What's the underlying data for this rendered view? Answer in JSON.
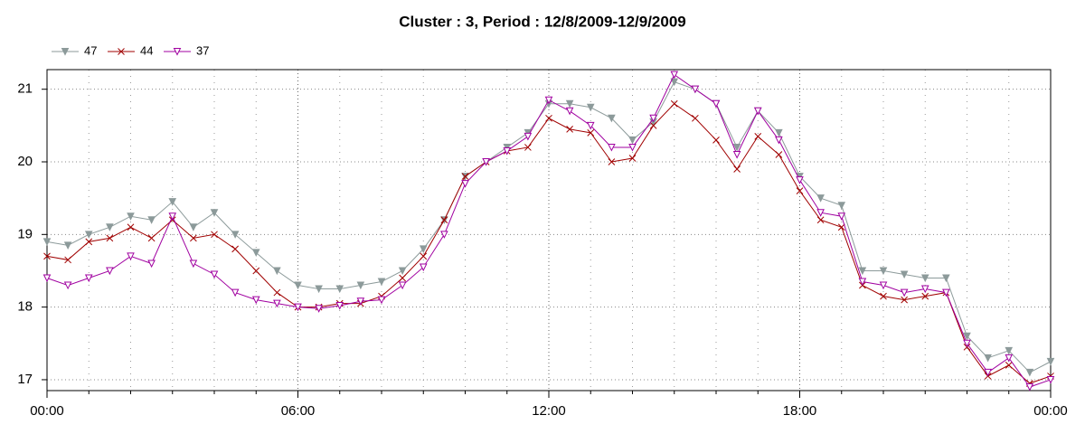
{
  "chart_data": {
    "type": "line",
    "title": "Cluster : 3, Period : 12/8/2009-12/9/2009",
    "x": [
      0,
      0.5,
      1,
      1.5,
      2,
      2.5,
      3,
      3.5,
      4,
      4.5,
      5,
      5.5,
      6,
      6.5,
      7,
      7.5,
      8,
      8.5,
      9,
      9.5,
      10,
      10.5,
      11,
      11.5,
      12,
      12.5,
      13,
      13.5,
      14,
      14.5,
      15,
      15.5,
      16,
      16.5,
      17,
      17.5,
      18,
      18.5,
      19,
      19.5,
      20,
      20.5,
      21,
      21.5,
      22,
      22.5,
      23,
      23.5,
      24
    ],
    "series": [
      {
        "name": "47",
        "color": "#8c9a9a",
        "marker": "triangle-down",
        "values": [
          18.9,
          18.85,
          19.0,
          19.1,
          19.25,
          19.2,
          19.45,
          19.1,
          19.3,
          19.0,
          18.75,
          18.5,
          18.3,
          18.25,
          18.25,
          18.3,
          18.35,
          18.5,
          18.8,
          19.2,
          19.8,
          20.0,
          20.2,
          20.4,
          20.8,
          20.8,
          20.75,
          20.6,
          20.3,
          20.55,
          21.1,
          21.0,
          20.8,
          20.2,
          20.7,
          20.4,
          19.8,
          19.5,
          19.4,
          18.5,
          18.5,
          18.45,
          18.4,
          18.4,
          17.6,
          17.3,
          17.4,
          17.1,
          17.25
        ]
      },
      {
        "name": "44",
        "color": "#a00000",
        "marker": "x",
        "values": [
          18.7,
          18.65,
          18.9,
          18.95,
          19.1,
          18.95,
          19.2,
          18.95,
          19.0,
          18.8,
          18.5,
          18.2,
          18.0,
          18.0,
          18.05,
          18.05,
          18.15,
          18.4,
          18.7,
          19.2,
          19.8,
          20.0,
          20.15,
          20.2,
          20.6,
          20.45,
          20.4,
          20.0,
          20.05,
          20.5,
          20.8,
          20.6,
          20.3,
          19.9,
          20.35,
          20.1,
          19.6,
          19.2,
          19.1,
          18.3,
          18.15,
          18.1,
          18.15,
          18.2,
          17.45,
          17.05,
          17.2,
          16.95,
          17.05
        ]
      },
      {
        "name": "37",
        "color": "#a000a0",
        "marker": "triangle-down-open",
        "values": [
          18.4,
          18.3,
          18.4,
          18.5,
          18.7,
          18.6,
          19.25,
          18.6,
          18.45,
          18.2,
          18.1,
          18.05,
          18.0,
          17.98,
          18.02,
          18.08,
          18.1,
          18.3,
          18.55,
          19.0,
          19.7,
          20.0,
          20.15,
          20.35,
          20.85,
          20.7,
          20.5,
          20.2,
          20.2,
          20.6,
          21.2,
          21.0,
          20.8,
          20.1,
          20.7,
          20.3,
          19.75,
          19.3,
          19.25,
          18.35,
          18.3,
          18.2,
          18.25,
          18.2,
          17.5,
          17.1,
          17.3,
          16.9,
          17.0
        ]
      }
    ],
    "xlim": [
      0,
      24
    ],
    "xticks": [
      {
        "value": 0,
        "label": "00:00"
      },
      {
        "value": 6,
        "label": "06:00"
      },
      {
        "value": 12,
        "label": "12:00"
      },
      {
        "value": 18,
        "label": "18:00"
      },
      {
        "value": 24,
        "label": "00:00"
      }
    ],
    "xminorticks": [
      1,
      2,
      3,
      4,
      5,
      7,
      8,
      9,
      10,
      11,
      13,
      14,
      15,
      16,
      17,
      19,
      20,
      21,
      22,
      23
    ],
    "ylim": [
      16.85,
      21.27
    ],
    "yticks": [
      17,
      18,
      19,
      20,
      21
    ],
    "grid": true,
    "legend": "top-left"
  }
}
